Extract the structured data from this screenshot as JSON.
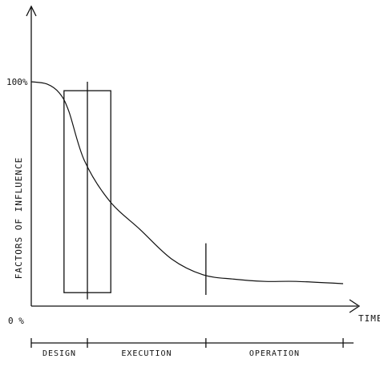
{
  "chart_data": {
    "type": "line",
    "title": "",
    "xlabel": "TIME",
    "ylabel": "FACTORS OF INFLUENCE",
    "y_tick_labels": {
      "top": "100%",
      "bottom": "0 %"
    },
    "ylim": [
      0,
      100
    ],
    "xlim": [
      0,
      100
    ],
    "series": [
      {
        "x": [
          0,
          5,
          9,
          12,
          17,
          25,
          35,
          45,
          55,
          65,
          75,
          85,
          100
        ],
        "values": [
          100,
          99,
          95,
          87,
          65,
          47,
          34,
          21,
          14,
          12,
          11,
          11,
          10
        ]
      }
    ],
    "highlight_box": {
      "x_start": 10.5,
      "x_end": 25.5,
      "y_start": 6,
      "y_end": 96
    },
    "marker_lines": [
      {
        "x": 18,
        "y_from": 3,
        "y_to": 100
      },
      {
        "x": 56,
        "y_from": 5,
        "y_to": 28
      }
    ],
    "phases": [
      {
        "label": "DESIGN",
        "x_start": 0,
        "x_end": 18
      },
      {
        "label": "EXECUTION",
        "x_start": 18,
        "x_end": 56
      },
      {
        "label": "OPERATION",
        "x_start": 56,
        "x_end": 100
      }
    ],
    "grid": false,
    "colors": {
      "ink": "#111111",
      "background": "#ffffff"
    }
  }
}
